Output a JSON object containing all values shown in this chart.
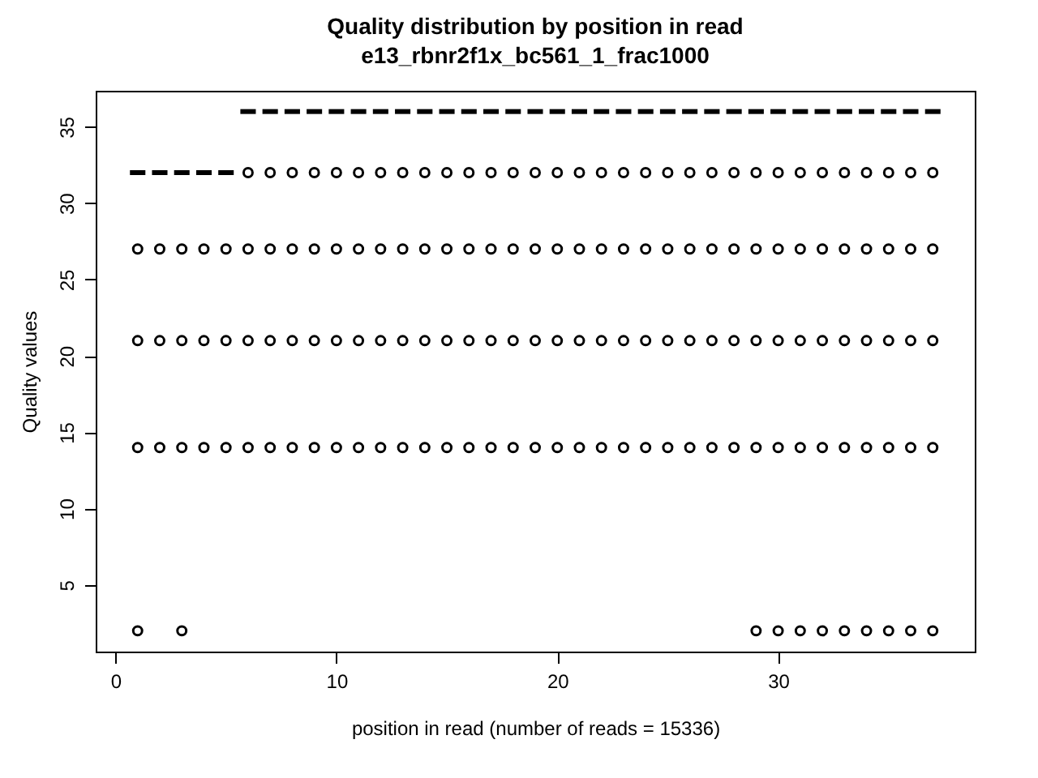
{
  "chart_data": {
    "type": "box",
    "title": "Quality distribution by position in read",
    "subtitle": "e13_rbnr2f1x_bc561_1_frac1000",
    "xlabel": "position in read (number of reads = 15336)",
    "ylabel": "Quality values",
    "x": [
      1,
      2,
      3,
      4,
      5,
      6,
      7,
      8,
      9,
      10,
      11,
      12,
      13,
      14,
      15,
      16,
      17,
      18,
      19,
      20,
      21,
      22,
      23,
      24,
      25,
      26,
      27,
      28,
      29,
      30,
      31,
      32,
      33,
      34,
      35,
      36,
      37
    ],
    "boxes": [
      {
        "low": 32,
        "q1": 32,
        "median": 32,
        "q3": 32,
        "high": 32,
        "outliers": [
          2,
          14,
          21,
          27
        ]
      },
      {
        "low": 32,
        "q1": 32,
        "median": 32,
        "q3": 32,
        "high": 32,
        "outliers": [
          14,
          21,
          27
        ]
      },
      {
        "low": 32,
        "q1": 32,
        "median": 32,
        "q3": 32,
        "high": 32,
        "outliers": [
          2,
          14,
          21,
          27
        ]
      },
      {
        "low": 32,
        "q1": 32,
        "median": 32,
        "q3": 32,
        "high": 32,
        "outliers": [
          14,
          21,
          27
        ]
      },
      {
        "low": 32,
        "q1": 32,
        "median": 32,
        "q3": 32,
        "high": 32,
        "outliers": [
          14,
          21,
          27
        ]
      },
      {
        "low": 36,
        "q1": 36,
        "median": 36,
        "q3": 36,
        "high": 36,
        "outliers": [
          14,
          21,
          27,
          32
        ]
      },
      {
        "low": 36,
        "q1": 36,
        "median": 36,
        "q3": 36,
        "high": 36,
        "outliers": [
          14,
          21,
          27,
          32
        ]
      },
      {
        "low": 36,
        "q1": 36,
        "median": 36,
        "q3": 36,
        "high": 36,
        "outliers": [
          14,
          21,
          27,
          32
        ]
      },
      {
        "low": 36,
        "q1": 36,
        "median": 36,
        "q3": 36,
        "high": 36,
        "outliers": [
          14,
          21,
          27,
          32
        ]
      },
      {
        "low": 36,
        "q1": 36,
        "median": 36,
        "q3": 36,
        "high": 36,
        "outliers": [
          14,
          21,
          27,
          32
        ]
      },
      {
        "low": 36,
        "q1": 36,
        "median": 36,
        "q3": 36,
        "high": 36,
        "outliers": [
          14,
          21,
          27,
          32
        ]
      },
      {
        "low": 36,
        "q1": 36,
        "median": 36,
        "q3": 36,
        "high": 36,
        "outliers": [
          14,
          21,
          27,
          32
        ]
      },
      {
        "low": 36,
        "q1": 36,
        "median": 36,
        "q3": 36,
        "high": 36,
        "outliers": [
          14,
          21,
          27,
          32
        ]
      },
      {
        "low": 36,
        "q1": 36,
        "median": 36,
        "q3": 36,
        "high": 36,
        "outliers": [
          14,
          21,
          27,
          32
        ]
      },
      {
        "low": 36,
        "q1": 36,
        "median": 36,
        "q3": 36,
        "high": 36,
        "outliers": [
          14,
          21,
          27,
          32
        ]
      },
      {
        "low": 36,
        "q1": 36,
        "median": 36,
        "q3": 36,
        "high": 36,
        "outliers": [
          14,
          21,
          27,
          32
        ]
      },
      {
        "low": 36,
        "q1": 36,
        "median": 36,
        "q3": 36,
        "high": 36,
        "outliers": [
          14,
          21,
          27,
          32
        ]
      },
      {
        "low": 36,
        "q1": 36,
        "median": 36,
        "q3": 36,
        "high": 36,
        "outliers": [
          14,
          21,
          27,
          32
        ]
      },
      {
        "low": 36,
        "q1": 36,
        "median": 36,
        "q3": 36,
        "high": 36,
        "outliers": [
          14,
          21,
          27,
          32
        ]
      },
      {
        "low": 36,
        "q1": 36,
        "median": 36,
        "q3": 36,
        "high": 36,
        "outliers": [
          14,
          21,
          27,
          32
        ]
      },
      {
        "low": 36,
        "q1": 36,
        "median": 36,
        "q3": 36,
        "high": 36,
        "outliers": [
          14,
          21,
          27,
          32
        ]
      },
      {
        "low": 36,
        "q1": 36,
        "median": 36,
        "q3": 36,
        "high": 36,
        "outliers": [
          14,
          21,
          27,
          32
        ]
      },
      {
        "low": 36,
        "q1": 36,
        "median": 36,
        "q3": 36,
        "high": 36,
        "outliers": [
          14,
          21,
          27,
          32
        ]
      },
      {
        "low": 36,
        "q1": 36,
        "median": 36,
        "q3": 36,
        "high": 36,
        "outliers": [
          14,
          21,
          27,
          32
        ]
      },
      {
        "low": 36,
        "q1": 36,
        "median": 36,
        "q3": 36,
        "high": 36,
        "outliers": [
          14,
          21,
          27,
          32
        ]
      },
      {
        "low": 36,
        "q1": 36,
        "median": 36,
        "q3": 36,
        "high": 36,
        "outliers": [
          14,
          21,
          27,
          32
        ]
      },
      {
        "low": 36,
        "q1": 36,
        "median": 36,
        "q3": 36,
        "high": 36,
        "outliers": [
          14,
          21,
          27,
          32
        ]
      },
      {
        "low": 36,
        "q1": 36,
        "median": 36,
        "q3": 36,
        "high": 36,
        "outliers": [
          14,
          21,
          27,
          32
        ]
      },
      {
        "low": 36,
        "q1": 36,
        "median": 36,
        "q3": 36,
        "high": 36,
        "outliers": [
          2,
          14,
          21,
          27,
          32
        ]
      },
      {
        "low": 36,
        "q1": 36,
        "median": 36,
        "q3": 36,
        "high": 36,
        "outliers": [
          2,
          14,
          21,
          27,
          32
        ]
      },
      {
        "low": 36,
        "q1": 36,
        "median": 36,
        "q3": 36,
        "high": 36,
        "outliers": [
          2,
          14,
          21,
          27,
          32
        ]
      },
      {
        "low": 36,
        "q1": 36,
        "median": 36,
        "q3": 36,
        "high": 36,
        "outliers": [
          2,
          14,
          21,
          27,
          32
        ]
      },
      {
        "low": 36,
        "q1": 36,
        "median": 36,
        "q3": 36,
        "high": 36,
        "outliers": [
          2,
          14,
          21,
          27,
          32
        ]
      },
      {
        "low": 36,
        "q1": 36,
        "median": 36,
        "q3": 36,
        "high": 36,
        "outliers": [
          2,
          14,
          21,
          27,
          32
        ]
      },
      {
        "low": 36,
        "q1": 36,
        "median": 36,
        "q3": 36,
        "high": 36,
        "outliers": [
          2,
          14,
          21,
          27,
          32
        ]
      },
      {
        "low": 36,
        "q1": 36,
        "median": 36,
        "q3": 36,
        "high": 36,
        "outliers": [
          2,
          14,
          21,
          27,
          32
        ]
      },
      {
        "low": 36,
        "q1": 36,
        "median": 36,
        "q3": 36,
        "high": 36,
        "outliers": [
          2,
          14,
          21,
          27,
          32
        ]
      }
    ],
    "xlim": [
      -0.9,
      38.9
    ],
    "ylim": [
      0.64,
      37.36
    ],
    "xticks": [
      0,
      10,
      20,
      30
    ],
    "yticks": [
      5,
      10,
      15,
      20,
      25,
      30,
      35
    ],
    "grid": false
  }
}
